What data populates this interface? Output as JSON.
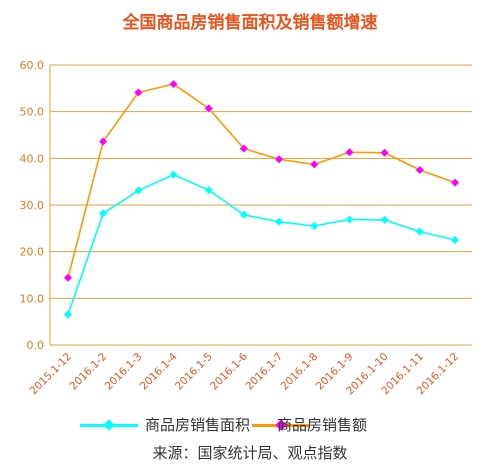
{
  "title": "全国商品房销售面积及销售额增速",
  "source": "来源：国家统计局、观点指数",
  "chart_data": {
    "type": "line",
    "categories": [
      "2015.1-12",
      "2016.1-2",
      "2016.1-3",
      "2016.1-4",
      "2016.1-5",
      "2016.1-6",
      "2016.1-7",
      "2016.1-8",
      "2016.1-9",
      "2016.1-10",
      "2016.1-11",
      "2016.1-12"
    ],
    "ylim": [
      0,
      60
    ],
    "yticks": [
      "0.0",
      "10.0",
      "20.0",
      "30.0",
      "40.0",
      "50.0",
      "60.0"
    ],
    "grid": true,
    "legend_position": "bottom",
    "series": [
      {
        "name": "商品房销售面积",
        "color": "#00ffff",
        "marker": "diamond",
        "values": [
          6.5,
          28.2,
          33.1,
          36.5,
          33.2,
          27.9,
          26.4,
          25.5,
          26.9,
          26.8,
          24.3,
          22.5
        ]
      },
      {
        "name": "商品房销售额",
        "color": "#ff9900",
        "marker_color": "#ff00ff",
        "marker": "diamond",
        "values": [
          14.4,
          43.6,
          54.1,
          55.9,
          50.7,
          42.1,
          39.8,
          38.7,
          41.3,
          41.2,
          37.5,
          34.8
        ]
      }
    ]
  },
  "colors": {
    "grid": "#e6a23c",
    "axis": "#e6a23c",
    "title": "#e8541e"
  }
}
